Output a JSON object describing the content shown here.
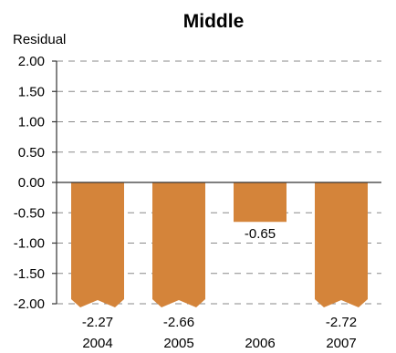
{
  "chart_data": {
    "type": "bar",
    "title": "Middle",
    "ylabel": "Residual",
    "xlabel": "",
    "ylim": [
      -2.0,
      2.0
    ],
    "yticks": [
      "2.00",
      "1.50",
      "1.00",
      "0.50",
      "0.00",
      "-0.50",
      "-1.00",
      "-1.50",
      "-2.00"
    ],
    "categories": [
      "2004",
      "2005",
      "2006",
      "2007"
    ],
    "values": [
      -2.27,
      -2.66,
      -0.65,
      -2.72
    ],
    "value_labels": [
      "-2.27",
      "-2.66",
      "-0.65",
      "-2.72"
    ],
    "bar_color": "#D4843A",
    "grid": "dashed horizontal",
    "legend": "none"
  }
}
